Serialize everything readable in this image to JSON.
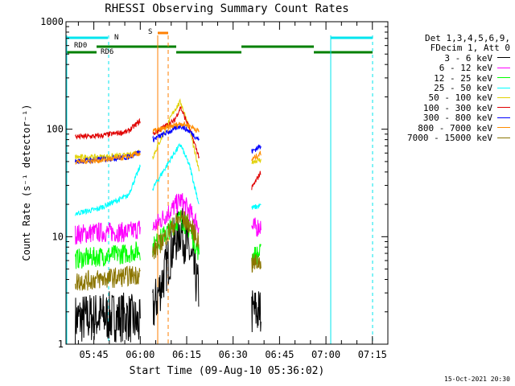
{
  "header": {
    "title": "RHESSI Observing Summary Count Rates",
    "xlabel": "Start Time (09-Aug-10 05:36:02)",
    "ylabel": "Count Rate (s⁻¹ detector⁻¹)",
    "timestamp": "15-Oct-2021 20:30"
  },
  "legend": {
    "lines": [
      "Det 1,3,4,5,6,9,",
      "FDecim 1, Att 0"
    ]
  },
  "flags": {
    "night_label": "N",
    "saa_label": "S",
    "rd0_label": "RD0",
    "rd6_label": "RD6",
    "colors": {
      "night": "#00e5ee",
      "saa": "#ff7f00",
      "decim": "#008000"
    }
  },
  "chart_data": {
    "type": "line",
    "title": "RHESSI Observing Summary Count Rates",
    "xlabel": "Start Time (09-Aug-10 05:36:02)",
    "ylabel": "Count Rate (s^-1 detector^-1)",
    "yscale": "log",
    "ylim": [
      1,
      1000
    ],
    "xlim": [
      "05:36",
      "07:20"
    ],
    "x_ticks": [
      "05:45",
      "06:00",
      "06:15",
      "06:30",
      "06:45",
      "07:00",
      "07:15"
    ],
    "y_ticks": [
      "1",
      "10",
      "100",
      "1000"
    ],
    "grid": false,
    "legend_position": "right",
    "x_unit": "minutes after 05:36",
    "segments": [
      [
        3,
        24
      ],
      [
        28,
        43
      ],
      [
        60,
        63
      ]
    ],
    "series": [
      {
        "name": "3 - 6 keV",
        "color": "#000000",
        "x": [
          3,
          10,
          20,
          24,
          28,
          35,
          37,
          40,
          43,
          60,
          63
        ],
        "values": [
          1.7,
          1.8,
          1.8,
          1.5,
          2.0,
          9.0,
          12.0,
          7.0,
          3.0,
          2.0,
          2.0
        ]
      },
      {
        "name": "6 - 12 keV",
        "color": "#ff00ff",
        "x": [
          3,
          10,
          20,
          24,
          28,
          35,
          37,
          40,
          43,
          60,
          63
        ],
        "values": [
          10.5,
          11.0,
          11.0,
          12.0,
          12.0,
          19.0,
          22.0,
          17.0,
          12.5,
          12.0,
          12.5
        ]
      },
      {
        "name": "12 - 25 keV",
        "color": "#00ff00",
        "x": [
          3,
          10,
          20,
          24,
          28,
          35,
          37,
          40,
          43,
          60,
          63
        ],
        "values": [
          6.2,
          6.5,
          7.0,
          7.5,
          8.0,
          13.0,
          15.0,
          11.5,
          7.0,
          6.5,
          7.0
        ]
      },
      {
        "name": "25 - 50 keV",
        "color": "#00ffff",
        "x": [
          3,
          10,
          20,
          24,
          28,
          35,
          37,
          40,
          43,
          60,
          63
        ],
        "values": [
          16.5,
          18.0,
          24.0,
          45.0,
          28.0,
          60.0,
          72.0,
          45.0,
          20.0,
          18.5,
          19.5
        ]
      },
      {
        "name": "50 - 100 keV",
        "color": "#e0d000",
        "x": [
          3,
          10,
          20,
          24,
          28,
          35,
          37,
          40,
          43,
          60,
          63
        ],
        "values": [
          55.0,
          55.0,
          57.0,
          63.0,
          55.0,
          150.0,
          180.0,
          100.0,
          40.0,
          50.0,
          52.0
        ]
      },
      {
        "name": "100 - 300 keV",
        "color": "#e00000",
        "x": [
          3,
          10,
          20,
          24,
          28,
          35,
          37,
          40,
          43,
          60,
          63
        ],
        "values": [
          85.0,
          86.0,
          95.0,
          120.0,
          90.0,
          120.0,
          160.0,
          100.0,
          55.0,
          28.0,
          40.0
        ]
      },
      {
        "name": "300 - 800 keV",
        "color": "#0000ff",
        "x": [
          3,
          10,
          20,
          24,
          28,
          35,
          37,
          40,
          43,
          60,
          63
        ],
        "values": [
          50.0,
          52.0,
          55.0,
          62.0,
          80.0,
          100.0,
          108.0,
          95.0,
          80.0,
          62.0,
          70.0
        ]
      },
      {
        "name": "800 - 7000 keV",
        "color": "#ff8c00",
        "x": [
          3,
          10,
          20,
          24,
          28,
          35,
          37,
          40,
          43,
          60,
          63
        ],
        "values": [
          50.0,
          51.0,
          55.0,
          60.0,
          95.0,
          108.0,
          113.0,
          108.0,
          95.0,
          52.0,
          60.0
        ]
      },
      {
        "name": "7000 - 15000 keV",
        "color": "#8b7500",
        "x": [
          3,
          10,
          20,
          24,
          28,
          35,
          37,
          40,
          43,
          60,
          63
        ],
        "values": [
          3.8,
          4.0,
          4.3,
          4.5,
          7.0,
          13.0,
          15.0,
          13.0,
          9.0,
          5.5,
          6.0
        ]
      }
    ]
  }
}
